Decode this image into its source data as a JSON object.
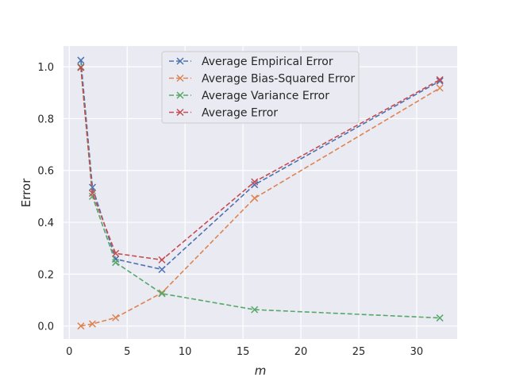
{
  "chart_data": {
    "type": "line",
    "xlabel": "m",
    "ylabel": "Error",
    "xlim": [
      -0.5,
      33.5
    ],
    "ylim": [
      -0.05,
      1.08
    ],
    "xticks": [
      0,
      5,
      10,
      15,
      20,
      25,
      30
    ],
    "yticks": [
      0.0,
      0.2,
      0.4,
      0.6,
      0.8,
      1.0
    ],
    "x": [
      1,
      2,
      4,
      8,
      16,
      32
    ],
    "grid": true,
    "legend_position": "upper-center",
    "series": [
      {
        "name": "Average Empirical Error",
        "color": "#4c72b0",
        "values": [
          1.025,
          0.535,
          0.258,
          0.218,
          0.545,
          0.945
        ]
      },
      {
        "name": "Average Bias-Squared Error",
        "color": "#dd8452",
        "values": [
          0.0,
          0.008,
          0.032,
          0.128,
          0.493,
          0.918
        ]
      },
      {
        "name": "Average Variance Error",
        "color": "#55a868",
        "values": [
          1.0,
          0.5,
          0.245,
          0.125,
          0.063,
          0.031
        ]
      },
      {
        "name": "Average Error",
        "color": "#c44e52",
        "values": [
          0.997,
          0.512,
          0.28,
          0.255,
          0.556,
          0.95
        ]
      }
    ]
  }
}
